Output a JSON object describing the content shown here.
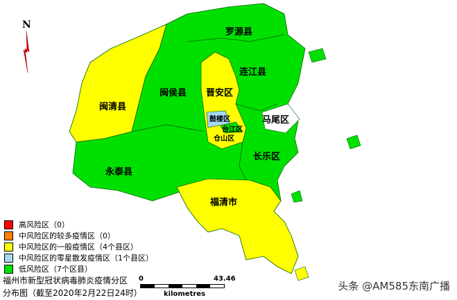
{
  "colors": {
    "high": "#ff0000",
    "medium_many": "#ff8000",
    "medium_general": "#ffff00",
    "medium_sporadic": "#a6d8f0",
    "low": "#00e000"
  },
  "north_label": "N",
  "regions": {
    "luoyuan": "罗源县",
    "lianjiang": "连江县",
    "minqing": "闽清县",
    "minhou": "闽侯县",
    "jinan": "晋安区",
    "gulou": "鼓楼区",
    "taijiang": "台江区",
    "cangshan": "仓山区",
    "mawei": "马尾区",
    "changle": "长乐区",
    "yongtai": "永泰县",
    "fuqing": "福清市"
  },
  "legend": [
    {
      "label": "高风险区（0）",
      "color": "#ff0000"
    },
    {
      "label": "中风险区的较多疫情区（0）",
      "color": "#ff8000"
    },
    {
      "label": "中风险区的一般疫情区（4个县区）",
      "color": "#ffff00"
    },
    {
      "label": "中风险区的零星散发疫情区（1个县区）",
      "color": "#a6d8f0"
    },
    {
      "label": "低风险区（7个区县）",
      "color": "#00e000"
    }
  ],
  "title_line1": "福州市新型冠状病毒肺炎疫情分区",
  "title_line2": "分布图（截至2020年2月22日24时）",
  "scale": {
    "start": "0",
    "end": "43.46",
    "unit": "kilometres"
  },
  "watermark": "头条 @AM585东南广播"
}
